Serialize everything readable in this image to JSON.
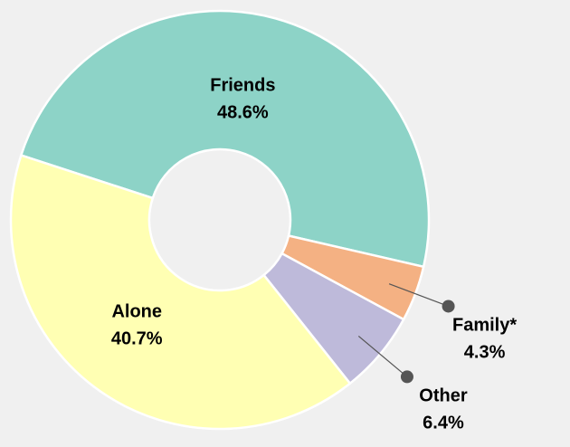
{
  "chart_data": {
    "type": "pie",
    "donut": true,
    "categories": [
      "Friends",
      "Family*",
      "Other",
      "Alone"
    ],
    "values": [
      48.6,
      4.3,
      6.4,
      40.7
    ],
    "value_labels": [
      "48.6%",
      "4.3%",
      "6.4%",
      "40.7%"
    ],
    "colors": [
      "#8dd3c7",
      "#f4b183",
      "#bebada",
      "#ffffb3"
    ]
  }
}
